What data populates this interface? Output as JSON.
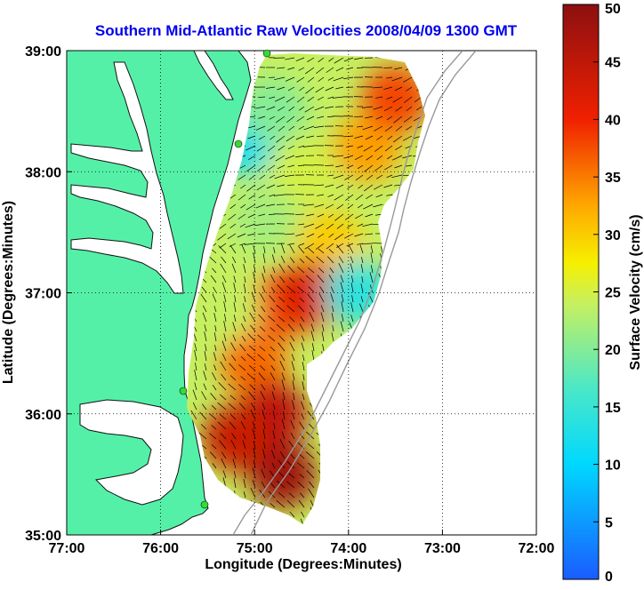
{
  "chart_data": {
    "type": "heatmap",
    "title": "Southern Mid-Atlantic Raw Velocities 2008/04/09 1300 GMT",
    "xlabel": "Longitude (Degrees:Minutes)",
    "ylabel": "Latitude (Degrees:Minutes)",
    "colorbar_label": "Surface Velocity (cm/s)",
    "x_ticks": [
      "77:00",
      "76:00",
      "75:00",
      "74:00",
      "73:00",
      "72:00"
    ],
    "x_tick_values": [
      -77,
      -76,
      -75,
      -74,
      -73,
      -72
    ],
    "y_ticks": [
      "39:00",
      "38:00",
      "37:00",
      "36:00",
      "35:00"
    ],
    "y_tick_values": [
      39,
      38,
      37,
      36,
      35
    ],
    "xlim": [
      -77,
      -72
    ],
    "ylim": [
      35,
      39
    ],
    "colorbar_ticks": [
      "50",
      "45",
      "40",
      "35",
      "30",
      "25",
      "20",
      "15",
      "10",
      "5",
      "0"
    ],
    "colorbar_tick_values": [
      50,
      45,
      40,
      35,
      30,
      25,
      20,
      15,
      10,
      5,
      0
    ],
    "clim": [
      0,
      50
    ],
    "grid": true,
    "colors": {
      "land": "#55f0a8",
      "water": "#ffffff",
      "title": "#0000ee",
      "coast": "#111111",
      "bathymetry": "#999999",
      "station": "#33dd33"
    },
    "speed_regions": [
      {
        "lon": -75.1,
        "lat": 38.25,
        "speed": 12
      },
      {
        "lon": -74.8,
        "lat": 38.5,
        "speed": 20
      },
      {
        "lon": -74.5,
        "lat": 38.0,
        "speed": 25
      },
      {
        "lon": -73.8,
        "lat": 38.2,
        "speed": 33
      },
      {
        "lon": -73.5,
        "lat": 38.6,
        "speed": 38
      },
      {
        "lon": -74.9,
        "lat": 37.6,
        "speed": 22
      },
      {
        "lon": -74.2,
        "lat": 37.4,
        "speed": 30
      },
      {
        "lon": -74.7,
        "lat": 36.9,
        "speed": 38
      },
      {
        "lon": -74.4,
        "lat": 37.0,
        "speed": 42
      },
      {
        "lon": -73.9,
        "lat": 37.0,
        "speed": 14
      },
      {
        "lon": -75.3,
        "lat": 36.9,
        "speed": 24
      },
      {
        "lon": -75.0,
        "lat": 36.4,
        "speed": 36
      },
      {
        "lon": -74.8,
        "lat": 36.0,
        "speed": 45
      },
      {
        "lon": -74.7,
        "lat": 35.5,
        "speed": 48
      },
      {
        "lon": -75.2,
        "lat": 35.8,
        "speed": 44
      }
    ]
  }
}
